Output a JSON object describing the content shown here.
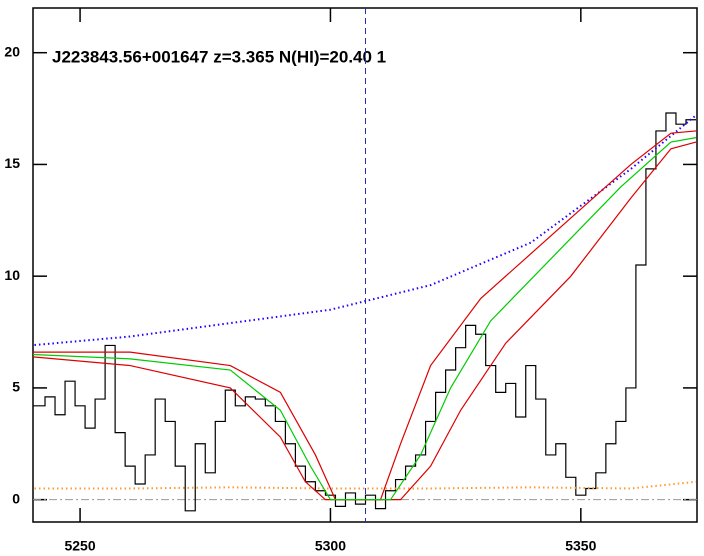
{
  "chart_data": {
    "type": "line",
    "title": "J223843.56+001647 z=3.365 N(HI)=20.40 1",
    "xlim": [
      5240.6,
      5373.2
    ],
    "ylim": [
      -1,
      22
    ],
    "xticks": [
      5250,
      5300,
      5350
    ],
    "yticks": [
      0,
      5,
      10,
      15,
      20
    ],
    "zero_line": 0,
    "vline": 5307,
    "series": [
      {
        "name": "flux",
        "color": "#000000",
        "style": "step",
        "x": [
          5240,
          5242,
          5244,
          5246,
          5248,
          5250,
          5252,
          5254,
          5256,
          5258,
          5260,
          5262,
          5264,
          5266,
          5268,
          5270,
          5272,
          5274,
          5276,
          5278,
          5280,
          5282,
          5284,
          5286,
          5288,
          5290,
          5292,
          5294,
          5296,
          5298,
          5300,
          5302,
          5304,
          5306,
          5308,
          5310,
          5312,
          5314,
          5316,
          5318,
          5320,
          5322,
          5324,
          5326,
          5328,
          5330,
          5332,
          5334,
          5336,
          5338,
          5340,
          5342,
          5344,
          5346,
          5348,
          5350,
          5352,
          5354,
          5356,
          5358,
          5360,
          5362,
          5364,
          5366,
          5368,
          5370,
          5372
        ],
        "values": [
          4.2,
          4.2,
          4.6,
          3.8,
          5.3,
          4.2,
          3.2,
          4.5,
          6.9,
          3.0,
          1.5,
          0.7,
          2.0,
          4.5,
          3.5,
          1.5,
          -0.5,
          2.5,
          1.2,
          3.5,
          4.9,
          4.2,
          4.6,
          4.5,
          4.2,
          3.5,
          2.5,
          1.5,
          0.8,
          0.4,
          0.2,
          -0.3,
          0.3,
          -0.2,
          0.2,
          -0.4,
          0.4,
          0.9,
          1.5,
          2.0,
          3.5,
          4.8,
          5.8,
          6.8,
          7.8,
          7.4,
          6.0,
          4.8,
          5.2,
          3.7,
          6.0,
          4.5,
          2.0,
          2.5,
          1.0,
          0.2,
          0.5,
          1.2,
          2.5,
          3.5,
          5.0,
          10.5,
          14.8,
          16.5,
          17.3,
          16.8,
          17.0
        ]
      },
      {
        "name": "continuum",
        "color": "#2200ff",
        "style": "dotted",
        "x": [
          5240,
          5260,
          5280,
          5300,
          5320,
          5340,
          5360,
          5373
        ],
        "values": [
          6.9,
          7.3,
          7.9,
          8.5,
          9.6,
          11.5,
          14.8,
          17.2
        ]
      },
      {
        "name": "error",
        "color": "#ff9933",
        "style": "dotted",
        "x": [
          5240,
          5260,
          5280,
          5300,
          5320,
          5340,
          5360,
          5373
        ],
        "values": [
          0.5,
          0.5,
          0.55,
          0.5,
          0.5,
          0.55,
          0.5,
          0.8
        ]
      },
      {
        "name": "model-upper",
        "color": "#dd0000",
        "style": "solid",
        "x": [
          5240,
          5260,
          5280,
          5290,
          5297,
          5301,
          5310,
          5314,
          5320,
          5330,
          5345,
          5360,
          5368,
          5373
        ],
        "values": [
          6.6,
          6.6,
          6.0,
          4.8,
          2.0,
          0,
          0,
          2.5,
          6.0,
          9.0,
          12,
          15,
          16.4,
          16.5
        ]
      },
      {
        "name": "model-lower",
        "color": "#dd0000",
        "style": "solid",
        "x": [
          5240,
          5260,
          5280,
          5290,
          5295,
          5299,
          5314,
          5320,
          5326,
          5335,
          5348,
          5360,
          5368,
          5373
        ],
        "values": [
          6.4,
          6.0,
          5.0,
          2.8,
          0.8,
          0,
          0,
          1.5,
          4,
          7,
          10,
          13.5,
          15.7,
          16
        ]
      },
      {
        "name": "model",
        "color": "#00cc00",
        "style": "solid",
        "x": [
          5240,
          5260,
          5280,
          5290,
          5296,
          5300,
          5312,
          5318,
          5324,
          5332,
          5345,
          5358,
          5368,
          5373
        ],
        "values": [
          6.5,
          6.3,
          5.8,
          4.0,
          1.5,
          0,
          0,
          2,
          5,
          8,
          11,
          14,
          16,
          16.2
        ]
      }
    ]
  }
}
